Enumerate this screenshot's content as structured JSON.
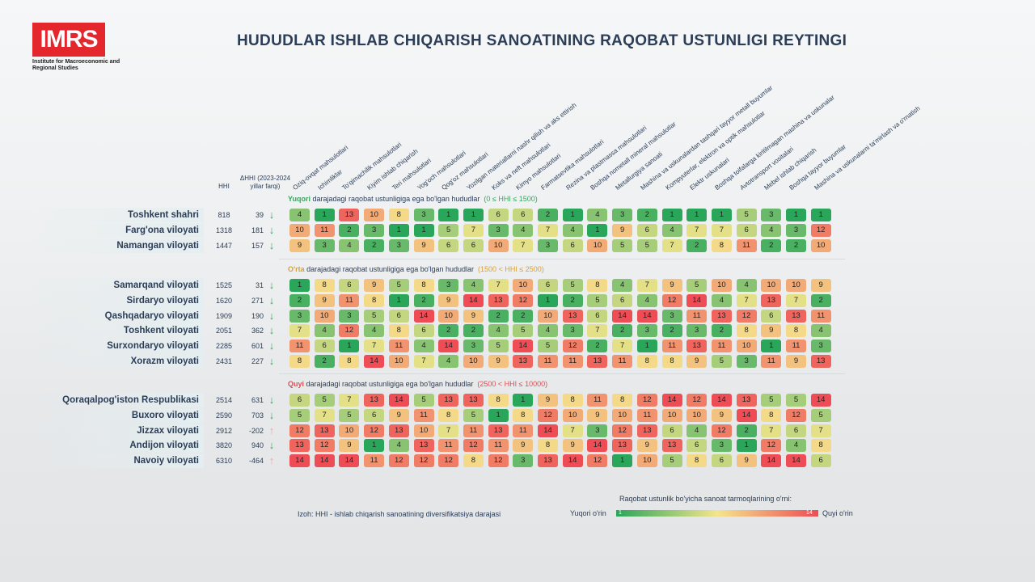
{
  "logo": {
    "text": "IMRS",
    "subtitle": "Institute for Macroeconomic and Regional Studies"
  },
  "title": "HUDUDLAR ISHLAB CHIQARISH SANOATINING RAQOBAT USTUNLIGI REYTINGI",
  "header": {
    "hhi": "HHI",
    "dhhi": "ΔHHI (2023-2024 yillar farqi)"
  },
  "chart_data": {
    "type": "heatmap",
    "title": "HUDUDLAR ISHLAB CHIQARISH SANOATINING RAQOBAT USTUNLIGI REYTINGI",
    "columns": [
      "Oziq-ovqat mahsulotlari",
      "Ichimliklar",
      "To'qimachilik mahsulotlari",
      "Kiyim ishlab chiqarish",
      "Teri mahsulotlari",
      "Yog'och mahsulotlari",
      "Qog'oz mahsulotlari",
      "Yozilgan materiallarni nashr qilish va aks ettirish",
      "Koks va neft mahsulotlari",
      "Kimyo mahsulotlari",
      "Farmatsevtika mahsulotlari",
      "Rezina va plastmassa mahsulotlari",
      "Boshqa nometall mineral mahsulotlar",
      "Metallurgiya sanoati",
      "Mashina va uskunalardan tashqari tayyor metall buyumlar",
      "Kompyuterlar, elektron va optik mahsulotlar",
      "Elektr uskunalari",
      "Boshqa toifalarga kiritilmagan mashina va uskunalar",
      "Avtotransport vositalari",
      "Mebel ishlab chiqarish",
      "Boshqa tayyor buyumlar",
      "Mashina va uskunalarni ta'mirlash va o'rnatish"
    ],
    "groups": [
      {
        "title_bold": "Yuqori",
        "title_rest": " darajadagi raqobat ustunligiga ega bo'lgan hududlar",
        "title_range": "(0 ≤ HHI  ≤ 1500)",
        "color": "#3aa660",
        "rows": [
          {
            "region": "Toshkent shahri",
            "hhi": "818",
            "dhhi": "39",
            "trend": "down",
            "values": [
              4,
              1,
              13,
              10,
              8,
              3,
              1,
              1,
              6,
              6,
              2,
              1,
              4,
              3,
              2,
              1,
              1,
              1,
              5,
              3,
              1,
              1
            ]
          },
          {
            "region": "Farg'ona  viloyati",
            "hhi": "1318",
            "dhhi": "181",
            "trend": "down",
            "values": [
              10,
              11,
              2,
              3,
              1,
              1,
              5,
              7,
              3,
              4,
              7,
              4,
              1,
              9,
              6,
              4,
              7,
              7,
              6,
              4,
              3,
              12
            ]
          },
          {
            "region": "Namangan viloyati",
            "hhi": "1447",
            "dhhi": "157",
            "trend": "down",
            "values": [
              9,
              3,
              4,
              2,
              3,
              9,
              6,
              6,
              10,
              7,
              3,
              6,
              10,
              5,
              5,
              7,
              2,
              8,
              11,
              2,
              2,
              10
            ]
          }
        ]
      },
      {
        "title_bold": "O'rta",
        "title_rest": " darajadagi raqobat ustunligiga ega bo'lgan hududlar",
        "title_range": "(1500 < HHI  ≤ 2500)",
        "color": "#d9a03a",
        "rows": [
          {
            "region": "Samarqand viloyati",
            "hhi": "1525",
            "dhhi": "31",
            "trend": "down",
            "values": [
              1,
              8,
              6,
              9,
              5,
              8,
              3,
              4,
              7,
              10,
              6,
              5,
              8,
              4,
              7,
              9,
              5,
              10,
              4,
              10,
              10,
              9
            ]
          },
          {
            "region": "Sirdaryo viloyati",
            "hhi": "1620",
            "dhhi": "271",
            "trend": "down",
            "values": [
              2,
              9,
              11,
              8,
              1,
              2,
              9,
              14,
              13,
              12,
              1,
              2,
              5,
              6,
              4,
              12,
              14,
              4,
              7,
              13,
              7,
              2
            ]
          },
          {
            "region": "Qashqadaryo viloyati",
            "hhi": "1909",
            "dhhi": "190",
            "trend": "down",
            "values": [
              3,
              10,
              3,
              5,
              6,
              14,
              10,
              9,
              2,
              2,
              10,
              13,
              6,
              14,
              14,
              3,
              11,
              13,
              12,
              6,
              13,
              11
            ]
          },
          {
            "region": "Toshkent viloyati",
            "hhi": "2051",
            "dhhi": "362",
            "trend": "down",
            "values": [
              7,
              4,
              12,
              4,
              8,
              6,
              2,
              2,
              4,
              5,
              4,
              3,
              7,
              2,
              3,
              2,
              3,
              2,
              8,
              9,
              8,
              4
            ]
          },
          {
            "region": "Surxondaryo viloyati",
            "hhi": "2285",
            "dhhi": "601",
            "trend": "down",
            "values": [
              11,
              6,
              1,
              7,
              11,
              4,
              14,
              3,
              5,
              14,
              5,
              12,
              2,
              7,
              1,
              11,
              13,
              11,
              10,
              1,
              11,
              3
            ]
          },
          {
            "region": "Xorazm viloyati",
            "hhi": "2431",
            "dhhi": "227",
            "trend": "down",
            "values": [
              8,
              2,
              8,
              14,
              10,
              7,
              4,
              10,
              9,
              13,
              11,
              11,
              13,
              11,
              8,
              8,
              9,
              5,
              3,
              11,
              9,
              13
            ]
          }
        ]
      },
      {
        "title_bold": "Quyi",
        "title_rest": " darajadagi raqobat ustunligiga ega bo'lgan hududlar",
        "title_range": "(2500 < HHI  ≤ 10000)",
        "color": "#e24b50",
        "rows": [
          {
            "region": "Qoraqalpog'iston Respublikasi",
            "hhi": "2514",
            "dhhi": "631",
            "trend": "down",
            "values": [
              6,
              5,
              7,
              13,
              14,
              5,
              13,
              13,
              8,
              1,
              9,
              8,
              11,
              8,
              12,
              14,
              12,
              14,
              13,
              5,
              5,
              14
            ]
          },
          {
            "region": "Buxoro viloyati",
            "hhi": "2590",
            "dhhi": "703",
            "trend": "down",
            "values": [
              5,
              7,
              5,
              6,
              9,
              11,
              8,
              5,
              1,
              8,
              12,
              10,
              9,
              10,
              11,
              10,
              10,
              9,
              14,
              8,
              12,
              5
            ]
          },
          {
            "region": "Jizzax viloyati",
            "hhi": "2912",
            "dhhi": "-202",
            "trend": "up",
            "values": [
              12,
              13,
              10,
              12,
              13,
              10,
              7,
              11,
              13,
              11,
              14,
              7,
              3,
              12,
              13,
              6,
              4,
              12,
              2,
              7,
              6,
              7
            ]
          },
          {
            "region": "Andijon viloyati",
            "hhi": "3820",
            "dhhi": "940",
            "trend": "down",
            "values": [
              13,
              12,
              9,
              1,
              4,
              13,
              11,
              12,
              11,
              9,
              8,
              9,
              14,
              13,
              9,
              13,
              6,
              3,
              1,
              12,
              4,
              8
            ]
          },
          {
            "region": "Navoiy viloyati",
            "hhi": "6310",
            "dhhi": "-464",
            "trend": "up",
            "values": [
              14,
              14,
              14,
              11,
              12,
              12,
              12,
              8,
              12,
              3,
              13,
              14,
              12,
              1,
              10,
              5,
              8,
              6,
              9,
              14,
              14,
              6
            ]
          }
        ]
      }
    ],
    "scale": {
      "min": 1,
      "max": 14,
      "low_color": "#2aa65a",
      "mid_color": "#f4e58c",
      "high_color": "#ee4d55"
    }
  },
  "legend": {
    "title": "Raqobat ustunlik bo'yicha sanoat tarmoqlarining o'rni:",
    "left": "Yuqori o'rin",
    "right": "Quyi o'rin",
    "low": "1",
    "high": "14"
  },
  "note": "Izoh: HHI  - ishlab chiqarish sanoatining diversifikatsiya darajasi"
}
